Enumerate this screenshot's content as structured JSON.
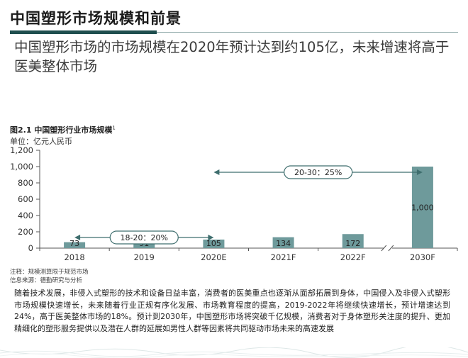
{
  "header": {
    "title": "中国塑形市场规模和前景",
    "subtitle": "中国塑形市场的市场规模在2020年预计达到约105亿，未来增速将高于医美整体市场"
  },
  "figure": {
    "title": "图2.1 中国塑形行业市场规模",
    "title_sup": "1",
    "unit": "单位：亿元人民币",
    "note1": "注释：规模测算限于规范市场",
    "note2": "信息来源：德勤研究与分析"
  },
  "paragraph": "随着技术发展，非侵入式塑形的技术和设备日益丰富，消费者的医美重点也逐渐从面部拓展到身体，中国侵入及非侵入式塑形市场规模快速增长，未来随着行业正规有序化发展、市场教育程度的提高，2019-2022年将继续快速增长，预计增速达到24%，高于医美整体市场的18%。预计到2030年，中国塑形市场将突破千亿规模，消费者对于身体塑形关注度的提升、更加精细化的塑形服务提供以及潜在人群的延展如男性人群等因素将共同驱动市场未来的高速发展",
  "chart_data": {
    "type": "bar",
    "categories": [
      "2018",
      "2019",
      "2020E",
      "2021F",
      "2022F",
      "2030F"
    ],
    "values": [
      73,
      91,
      105,
      134,
      172,
      1000
    ],
    "value_labels": [
      "73",
      "91",
      "105",
      "134",
      "172",
      "1,000"
    ],
    "ylim": [
      0,
      1200
    ],
    "yticks": [
      0,
      200,
      400,
      600,
      800,
      1000,
      1200
    ],
    "ytick_labels": [
      "0",
      "200",
      "400",
      "600",
      "800",
      "1,000",
      "1,200"
    ],
    "grid": false,
    "bar_color": "#6e9a9b",
    "axis_break_between": [
      "2022F",
      "2030F"
    ],
    "annotations": [
      {
        "text": "18-20：20%",
        "from": "2018",
        "to": "2020E",
        "level": 200
      },
      {
        "text": "20-30：25%",
        "from": "2020E",
        "to": "2030F",
        "level": 1000
      }
    ]
  },
  "colors": {
    "accent": "#1f4e4e",
    "arrow": "#3f6e6e"
  }
}
